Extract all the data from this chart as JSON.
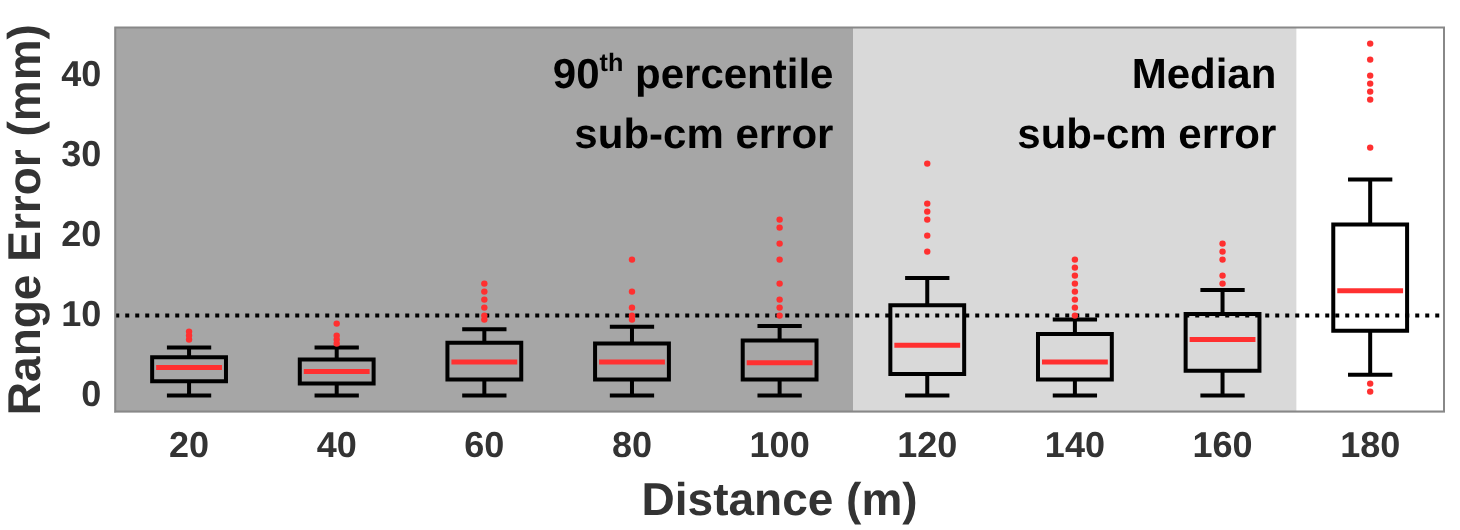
{
  "chart_data": {
    "type": "box",
    "xlabel": "Distance (m)",
    "ylabel": "Range Error (mm)",
    "categories": [
      "20",
      "40",
      "60",
      "80",
      "100",
      "120",
      "140",
      "160",
      "180"
    ],
    "ylim": [
      -2,
      46
    ],
    "yticks": [
      0,
      10,
      20,
      30,
      40
    ],
    "grid": false,
    "legend": false,
    "series": [
      {
        "color": "#000000",
        "boxes": [
          {
            "low": 0,
            "q1": 1.8,
            "median": 3.5,
            "q3": 4.8,
            "high": 6,
            "outliers": [
              7,
              7.5,
              8
            ]
          },
          {
            "low": 0,
            "q1": 1.5,
            "median": 3,
            "q3": 4.5,
            "high": 6,
            "outliers": [
              6.5,
              7,
              7.5,
              9
            ]
          },
          {
            "low": 0,
            "q1": 2,
            "median": 4.2,
            "q3": 6.6,
            "high": 8.3,
            "outliers": [
              9.5,
              10,
              11,
              12,
              13,
              14
            ]
          },
          {
            "low": 0,
            "q1": 2,
            "median": 4.2,
            "q3": 6.5,
            "high": 8.6,
            "outliers": [
              9.5,
              10,
              11,
              13,
              17
            ]
          },
          {
            "low": 0,
            "q1": 2,
            "median": 4.1,
            "q3": 6.9,
            "high": 8.7,
            "outliers": [
              10,
              11,
              12,
              14,
              17,
              19,
              21,
              22
            ]
          },
          {
            "low": 0,
            "q1": 2.7,
            "median": 6.3,
            "q3": 11.3,
            "high": 14.7,
            "outliers": [
              18,
              20,
              22,
              23,
              24,
              29
            ]
          },
          {
            "low": 0,
            "q1": 2,
            "median": 4.2,
            "q3": 7.7,
            "high": 9.5,
            "outliers": [
              10,
              11,
              12,
              13,
              14,
              15,
              16,
              17
            ]
          },
          {
            "low": 0,
            "q1": 3.1,
            "median": 7,
            "q3": 10.2,
            "high": 13.2,
            "outliers": [
              14,
              15,
              17,
              18,
              19
            ]
          },
          {
            "low": 2.6,
            "q1": 8.1,
            "median": 13.1,
            "q3": 21.4,
            "high": 27,
            "outliers": [
              0.5,
              1.5,
              31,
              37,
              38,
              39,
              40,
              42,
              44
            ]
          }
        ]
      }
    ],
    "ref_lines": [
      {
        "axis": "y",
        "value": 10,
        "label": null,
        "color": "#000000",
        "line_style": "dotted"
      }
    ],
    "bands": [
      {
        "axis": "x",
        "from": "20",
        "to": "100",
        "label": "90$^{th}$ percentile\nsub-cm error",
        "color": "#a6a6a6"
      },
      {
        "axis": "x",
        "from": "120",
        "to": "160",
        "label": "Median\nsub-cm error",
        "color": "#d9d9d9"
      }
    ]
  }
}
